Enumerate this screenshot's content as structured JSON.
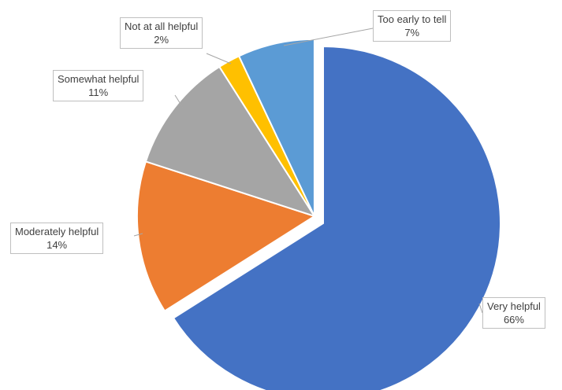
{
  "chart_data": {
    "type": "pie",
    "title": "",
    "start_angle_deg": 0,
    "direction": "clockwise",
    "exploded": true,
    "data_labels": "callout",
    "slices": [
      {
        "label": "Very helpful",
        "value": 66,
        "value_label": "66%",
        "color": "#4472c4"
      },
      {
        "label": "Moderately helpful",
        "value": 14,
        "value_label": "14%",
        "color": "#ed7d31"
      },
      {
        "label": "Somewhat helpful",
        "value": 11,
        "value_label": "11%",
        "color": "#a5a5a5"
      },
      {
        "label": "Not at all helpful",
        "value": 2,
        "value_label": "2%",
        "color": "#ffc000"
      },
      {
        "label": "Too early to tell",
        "value": 7,
        "value_label": "7%",
        "color": "#5b9bd5"
      }
    ]
  }
}
